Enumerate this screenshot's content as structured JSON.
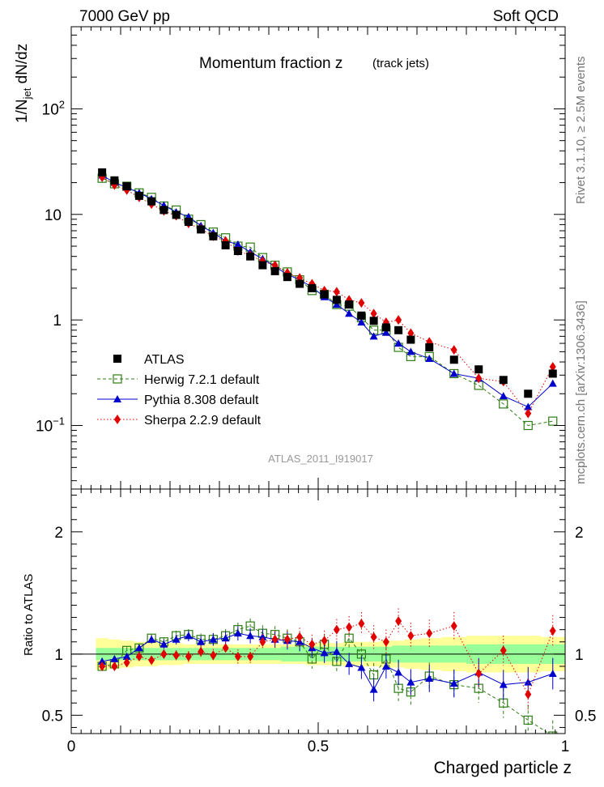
{
  "header": {
    "left": "7000 GeV pp",
    "right": "Soft QCD",
    "side_top": "Rivet 3.1.10, ≥ 2.5M events",
    "side_bottom": "mcplots.cern.ch [arXiv:1306.3436]"
  },
  "colors": {
    "atlas": "#000000",
    "herwig": "#2e7d14",
    "pythia": "#0000cc",
    "sherpa": "#e00000",
    "band_inner": "#99ff99",
    "band_outer": "#ffff99"
  },
  "chart_data": [
    {
      "type": "scatter",
      "title": "Momentum fraction z",
      "subtitle": "(track jets)",
      "watermark": "ATLAS_2011_I919017",
      "ylabel": "1/N_jet dN/dz",
      "yscale": "log",
      "ylim": [
        0.025,
        600
      ],
      "xlim": [
        0,
        1
      ],
      "y_ticks": [
        "10^-1",
        "1",
        "10",
        "10^2"
      ],
      "legend_position": "bottom-left",
      "x": [
        0.0625,
        0.0875,
        0.1125,
        0.1375,
        0.1625,
        0.1875,
        0.2125,
        0.2375,
        0.2625,
        0.2875,
        0.3125,
        0.3375,
        0.3625,
        0.3875,
        0.4125,
        0.4375,
        0.4625,
        0.4875,
        0.5125,
        0.5375,
        0.5625,
        0.5875,
        0.6125,
        0.6375,
        0.6625,
        0.6875,
        0.725,
        0.775,
        0.825,
        0.875,
        0.925,
        0.975
      ],
      "series": [
        {
          "name": "ATLAS",
          "marker": "square",
          "values": [
            25.0,
            21.0,
            18.5,
            15.0,
            13.3,
            11.0,
            9.9,
            8.5,
            7.2,
            6.2,
            5.1,
            4.5,
            4.0,
            3.3,
            2.9,
            2.55,
            2.2,
            2.0,
            1.75,
            1.55,
            1.4,
            1.1,
            0.98,
            0.85,
            0.8,
            0.65,
            0.55,
            0.42,
            0.34,
            0.27,
            0.2,
            0.31
          ]
        },
        {
          "name": "Herwig 7.2.1 default",
          "marker": "open-square",
          "values": [
            22.0,
            19.5,
            18.5,
            16.0,
            14.5,
            12.0,
            11.0,
            9.0,
            8.0,
            6.8,
            6.0,
            5.0,
            4.9,
            3.9,
            3.3,
            2.85,
            2.4,
            1.9,
            1.75,
            1.4,
            1.35,
            1.05,
            0.8,
            0.8,
            0.55,
            0.45,
            0.45,
            0.31,
            0.24,
            0.16,
            0.1,
            0.11
          ]
        },
        {
          "name": "Pythia 8.308 default",
          "marker": "triangle",
          "values": [
            23.5,
            20.0,
            18.0,
            16.0,
            14.0,
            12.2,
            10.5,
            9.5,
            7.8,
            6.7,
            5.6,
            5.2,
            4.4,
            3.8,
            3.2,
            2.7,
            2.4,
            2.05,
            1.65,
            1.4,
            1.15,
            0.95,
            0.7,
            0.76,
            0.6,
            0.5,
            0.43,
            0.31,
            0.28,
            0.19,
            0.15,
            0.25
          ]
        },
        {
          "name": "Sherpa 2.2.9 default",
          "marker": "diamond",
          "values": [
            22.5,
            19.0,
            17.0,
            14.5,
            12.5,
            10.8,
            9.7,
            8.2,
            7.3,
            6.2,
            5.6,
            4.5,
            4.1,
            3.6,
            3.3,
            2.8,
            2.5,
            2.2,
            1.9,
            1.85,
            1.55,
            1.45,
            1.15,
            0.95,
            1.0,
            0.75,
            0.62,
            0.52,
            0.28,
            0.26,
            0.13,
            0.36
          ]
        }
      ]
    },
    {
      "type": "scatter",
      "xlabel": "Charged particle z",
      "ylabel": "Ratio to ATLAS",
      "ylim": [
        0.35,
        2.35
      ],
      "xlim": [
        0,
        1
      ],
      "x_ticks": [
        "0",
        "0.5",
        "1"
      ],
      "y_ticks": [
        "0.5",
        "1",
        "2"
      ],
      "band_inner_half_width": [
        0.05,
        0.05,
        0.05,
        0.05,
        0.05,
        0.05,
        0.05,
        0.05,
        0.05,
        0.05,
        0.05,
        0.05,
        0.05,
        0.05,
        0.05,
        0.06,
        0.06,
        0.06,
        0.06,
        0.06,
        0.06,
        0.06,
        0.06,
        0.06,
        0.07,
        0.07,
        0.07,
        0.07,
        0.08,
        0.08,
        0.08,
        0.08
      ],
      "band_outer_half_width": [
        0.13,
        0.12,
        0.11,
        0.1,
        0.1,
        0.09,
        0.09,
        0.08,
        0.08,
        0.08,
        0.08,
        0.08,
        0.08,
        0.08,
        0.08,
        0.08,
        0.08,
        0.09,
        0.09,
        0.09,
        0.1,
        0.1,
        0.1,
        0.11,
        0.11,
        0.12,
        0.13,
        0.14,
        0.15,
        0.15,
        0.15,
        0.14
      ],
      "series": [
        {
          "name": "Herwig 7.2.1 default",
          "values": [
            0.9,
            0.92,
            1.03,
            1.05,
            1.13,
            1.1,
            1.15,
            1.16,
            1.12,
            1.12,
            1.15,
            1.2,
            1.23,
            1.17,
            1.16,
            1.13,
            1.1,
            0.96,
            1.08,
            0.94,
            1.13,
            1.0,
            0.83,
            0.96,
            0.72,
            0.69,
            0.82,
            0.75,
            0.72,
            0.6,
            0.46,
            0.33
          ]
        },
        {
          "name": "Pythia 8.308 default",
          "values": [
            0.94,
            0.96,
            0.98,
            1.05,
            1.12,
            1.08,
            1.12,
            1.15,
            1.1,
            1.12,
            1.13,
            1.17,
            1.15,
            1.14,
            1.12,
            1.11,
            1.1,
            1.05,
            1.01,
            1.02,
            0.92,
            0.89,
            0.71,
            0.9,
            0.85,
            0.77,
            0.8,
            0.76,
            0.85,
            0.75,
            0.77,
            0.84
          ]
        },
        {
          "name": "Sherpa 2.2.9 default",
          "values": [
            0.9,
            0.9,
            0.93,
            0.98,
            0.95,
            1.0,
            0.99,
            0.98,
            1.02,
            0.99,
            1.05,
            0.98,
            0.98,
            1.1,
            1.12,
            1.12,
            1.14,
            1.08,
            1.11,
            1.2,
            1.22,
            1.25,
            1.14,
            1.1,
            1.27,
            1.15,
            1.17,
            1.23,
            0.84,
            1.03,
            0.67,
            1.19
          ]
        }
      ]
    }
  ]
}
